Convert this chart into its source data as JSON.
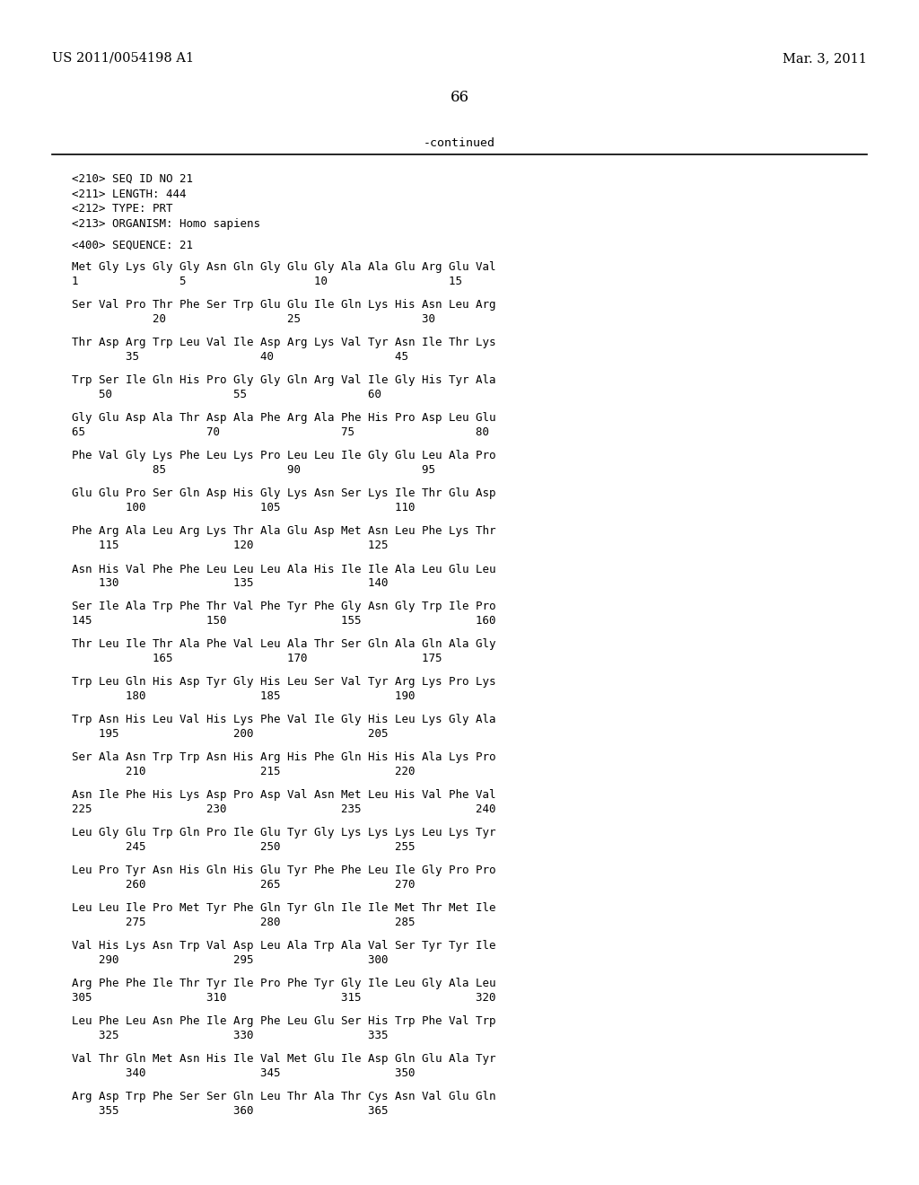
{
  "header_left": "US 2011/0054198 A1",
  "header_right": "Mar. 3, 2011",
  "page_number": "66",
  "continued_text": "-continued",
  "background_color": "#ffffff",
  "text_color": "#000000",
  "seq_info": [
    "<210> SEQ ID NO 21",
    "<211> LENGTH: 444",
    "<212> TYPE: PRT",
    "<213> ORGANISM: Homo sapiens"
  ],
  "seq_label": "<400> SEQUENCE: 21",
  "sequence_blocks": [
    [
      "Met Gly Lys Gly Gly Asn Gln Gly Glu Gly Ala Ala Glu Arg Glu Val",
      "1               5                   10                  15"
    ],
    [
      "Ser Val Pro Thr Phe Ser Trp Glu Glu Ile Gln Lys His Asn Leu Arg",
      "            20                  25                  30"
    ],
    [
      "Thr Asp Arg Trp Leu Val Ile Asp Arg Lys Val Tyr Asn Ile Thr Lys",
      "        35                  40                  45"
    ],
    [
      "Trp Ser Ile Gln His Pro Gly Gly Gln Arg Val Ile Gly His Tyr Ala",
      "    50                  55                  60"
    ],
    [
      "Gly Glu Asp Ala Thr Asp Ala Phe Arg Ala Phe His Pro Asp Leu Glu",
      "65                  70                  75                  80"
    ],
    [
      "Phe Val Gly Lys Phe Leu Lys Pro Leu Leu Ile Gly Glu Leu Ala Pro",
      "            85                  90                  95"
    ],
    [
      "Glu Glu Pro Ser Gln Asp His Gly Lys Asn Ser Lys Ile Thr Glu Asp",
      "        100                 105                 110"
    ],
    [
      "Phe Arg Ala Leu Arg Lys Thr Ala Glu Asp Met Asn Leu Phe Lys Thr",
      "    115                 120                 125"
    ],
    [
      "Asn His Val Phe Phe Leu Leu Leu Ala His Ile Ile Ala Leu Glu Leu",
      "    130                 135                 140"
    ],
    [
      "Ser Ile Ala Trp Phe Thr Val Phe Tyr Phe Gly Asn Gly Trp Ile Pro",
      "145                 150                 155                 160"
    ],
    [
      "Thr Leu Ile Thr Ala Phe Val Leu Ala Thr Ser Gln Ala Gln Ala Gly",
      "            165                 170                 175"
    ],
    [
      "Trp Leu Gln His Asp Tyr Gly His Leu Ser Val Tyr Arg Lys Pro Lys",
      "        180                 185                 190"
    ],
    [
      "Trp Asn His Leu Val His Lys Phe Val Ile Gly His Leu Lys Gly Ala",
      "    195                 200                 205"
    ],
    [
      "Ser Ala Asn Trp Trp Asn His Arg His Phe Gln His His Ala Lys Pro",
      "        210                 215                 220"
    ],
    [
      "Asn Ile Phe His Lys Asp Pro Asp Val Asn Met Leu His Val Phe Val",
      "225                 230                 235                 240"
    ],
    [
      "Leu Gly Glu Trp Gln Pro Ile Glu Tyr Gly Lys Lys Lys Leu Lys Tyr",
      "        245                 250                 255"
    ],
    [
      "Leu Pro Tyr Asn His Gln His Glu Tyr Phe Phe Leu Ile Gly Pro Pro",
      "        260                 265                 270"
    ],
    [
      "Leu Leu Ile Pro Met Tyr Phe Gln Tyr Gln Ile Ile Met Thr Met Ile",
      "        275                 280                 285"
    ],
    [
      "Val His Lys Asn Trp Val Asp Leu Ala Trp Ala Val Ser Tyr Tyr Ile",
      "    290                 295                 300"
    ],
    [
      "Arg Phe Phe Ile Thr Tyr Ile Pro Phe Tyr Gly Ile Leu Gly Ala Leu",
      "305                 310                 315                 320"
    ],
    [
      "Leu Phe Leu Asn Phe Ile Arg Phe Leu Glu Ser His Trp Phe Val Trp",
      "    325                 330                 335"
    ],
    [
      "Val Thr Gln Met Asn His Ile Val Met Glu Ile Asp Gln Glu Ala Tyr",
      "        340                 345                 350"
    ],
    [
      "Arg Asp Trp Phe Ser Ser Gln Leu Thr Ala Thr Cys Asn Val Glu Gln",
      "    355                 360                 365"
    ]
  ]
}
